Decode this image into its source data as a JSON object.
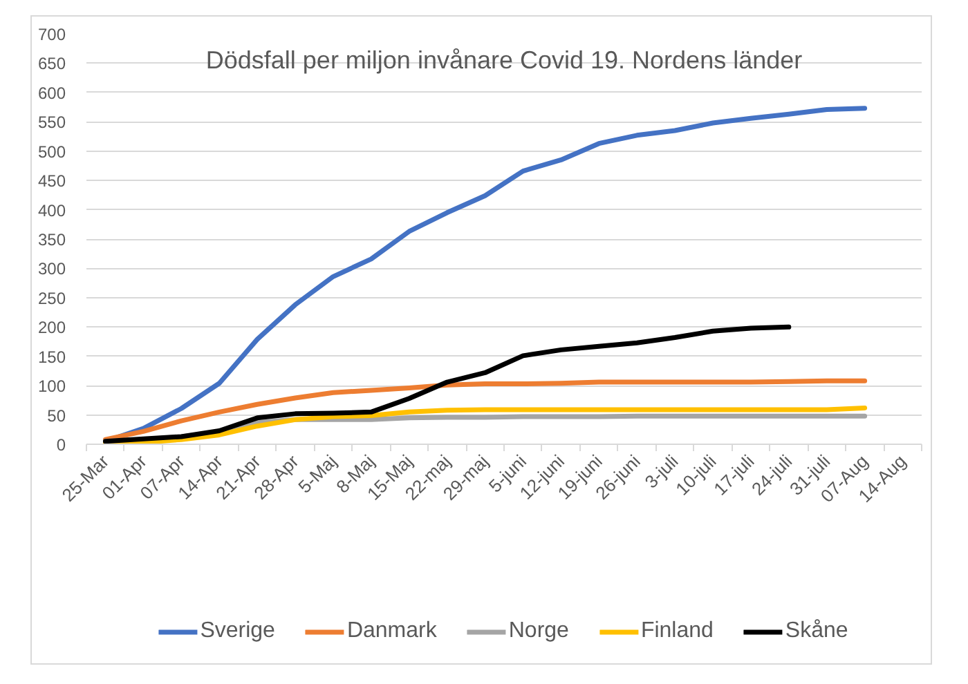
{
  "chart_data": {
    "type": "line",
    "title": "Dödsfall per miljon invånare Covid 19. Nordens länder",
    "categories": [
      "25-Mar",
      "01-Apr",
      "07-Apr",
      "14-Apr",
      "21-Apr",
      "28-Apr",
      "5-Maj",
      "8-Maj",
      "15-Maj",
      "22-maj",
      "29-maj",
      "5-juni",
      "12-juni",
      "19-juni",
      "26-juni",
      "3-juli",
      "10-juli",
      "17-juli",
      "24-juli",
      "31-juli",
      "07-Aug",
      "14-Aug"
    ],
    "ylim": [
      0,
      700
    ],
    "yticks": [
      0,
      50,
      100,
      150,
      200,
      250,
      300,
      350,
      400,
      450,
      500,
      550,
      600,
      650,
      700
    ],
    "grid": "y",
    "legend": "bottom",
    "series": [
      {
        "name": "Sverige",
        "color": "#4472c4",
        "values": [
          5,
          27,
          61,
          104,
          179,
          238,
          286,
          316,
          363,
          395,
          424,
          466,
          485,
          513,
          527,
          535,
          548,
          556,
          563,
          571,
          573,
          null
        ]
      },
      {
        "name": "Danmark",
        "color": "#ed7d31",
        "values": [
          8,
          22,
          40,
          55,
          68,
          79,
          88,
          92,
          96,
          101,
          103,
          103,
          104,
          106,
          106,
          106,
          106,
          106,
          107,
          108,
          108,
          null
        ]
      },
      {
        "name": "Norge",
        "color": "#a5a5a5",
        "values": [
          5,
          8,
          13,
          21,
          37,
          42,
          42,
          42,
          45,
          46,
          46,
          47,
          47,
          47,
          48,
          48,
          48,
          48,
          48,
          48,
          48,
          null
        ]
      },
      {
        "name": "Finland",
        "color": "#ffc000",
        "values": [
          2,
          3,
          8,
          16,
          31,
          42,
          47,
          49,
          55,
          58,
          59,
          59,
          59,
          59,
          59,
          59,
          59,
          59,
          59,
          59,
          62,
          null
        ]
      },
      {
        "name": "Skåne",
        "color": "#000000",
        "values": [
          5,
          9,
          13,
          23,
          45,
          52,
          53,
          55,
          78,
          106,
          122,
          151,
          161,
          167,
          173,
          182,
          193,
          198,
          200,
          null,
          null,
          null
        ]
      }
    ]
  }
}
